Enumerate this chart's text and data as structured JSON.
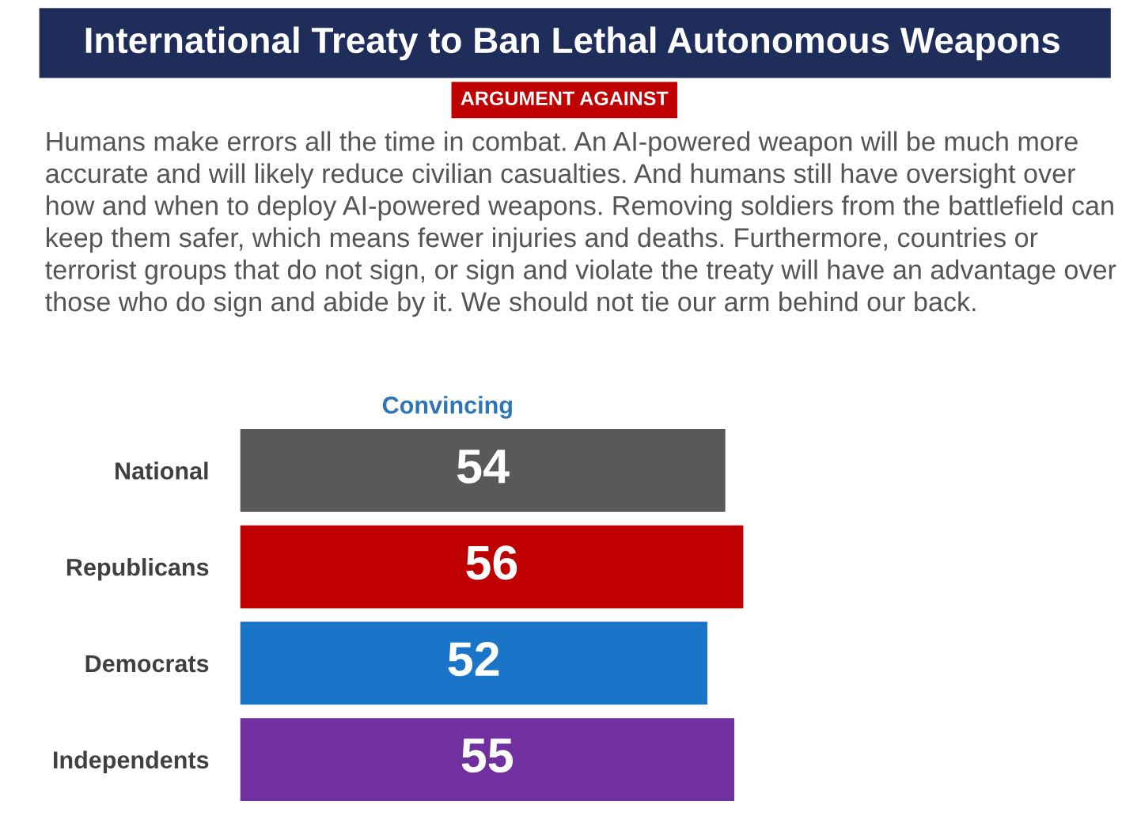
{
  "chart_data": {
    "type": "bar",
    "orientation": "horizontal",
    "title": "International Treaty to Ban Lethal Autonomous Weapons",
    "subtitle": "ARGUMENT AGAINST",
    "annotations": [
      "Humans make errors all the time in combat. An AI-powered weapon will be much more accurate and will likely reduce civilian casualties. And humans still have oversight over how and when to deploy AI-powered weapons. Removing soldiers from the battlefield can keep them safer, which means fewer injuries and deaths. Furthermore, countries or terrorist groups that do not sign, or sign and violate the treaty will have an advantage over those who do sign and abide by it. We should not tie our arm behind our back."
    ],
    "xlabel": "Convincing",
    "categories": [
      "National",
      "Republicans",
      "Democrats",
      "Independents"
    ],
    "values": [
      54,
      56,
      52,
      55
    ],
    "colors": [
      "#595959",
      "#c00000",
      "#1a75c9",
      "#7030a0"
    ],
    "data_labels": true
  }
}
